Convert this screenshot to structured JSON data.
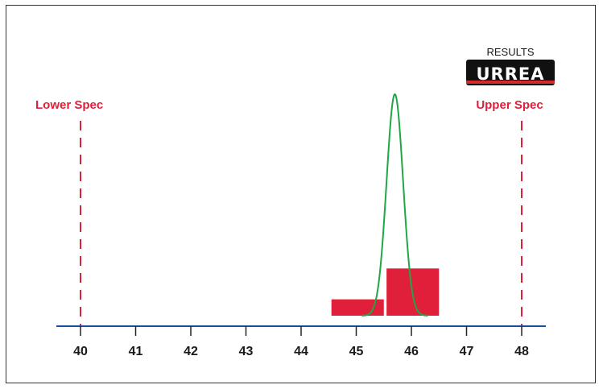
{
  "colors": {
    "bar": "#e0203a",
    "spec": "#e0203a",
    "curve": "#1fa645",
    "axis": "#1a4f9c",
    "logo_bg": "#111111",
    "logo_accent": "#d32a2a"
  },
  "logo": {
    "caption": "RESULTS",
    "brand": "URREA"
  },
  "chart_data": {
    "type": "bar",
    "title": "",
    "xlabel": "",
    "ylabel": "",
    "xlim": [
      40,
      48
    ],
    "x_ticks": [
      "40",
      "41",
      "42",
      "43",
      "44",
      "45",
      "46",
      "47",
      "48"
    ],
    "spec_limits": [
      {
        "label": "Lower Spec",
        "x": 40
      },
      {
        "label": "Upper Spec",
        "x": 48
      }
    ],
    "histogram": [
      {
        "x_start": 44.55,
        "x_end": 45.5,
        "height": 0.4
      },
      {
        "x_start": 45.55,
        "x_end": 46.5,
        "height": 0.86
      }
    ],
    "normal_curve": {
      "mean": 45.7,
      "sd": 0.15,
      "peak": 3.3
    },
    "ylim": [
      0,
      3.6
    ],
    "grid": false,
    "legend": "none"
  }
}
